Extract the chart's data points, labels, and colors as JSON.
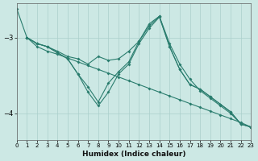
{
  "xlabel": "Humidex (Indice chaleur)",
  "bg_color": "#cce8e4",
  "line_color": "#2a7d6e",
  "grid_color": "#aacfcb",
  "xlim": [
    0,
    23
  ],
  "ylim": [
    -4.35,
    -2.55
  ],
  "yticks": [
    -4,
    -3
  ],
  "xticks": [
    0,
    1,
    2,
    3,
    4,
    5,
    6,
    7,
    8,
    9,
    10,
    11,
    12,
    13,
    14,
    15,
    16,
    17,
    18,
    19,
    20,
    21,
    22,
    23
  ],
  "series": [
    {
      "x": [
        0,
        1,
        2,
        3,
        4,
        5,
        6,
        7,
        8,
        9,
        10,
        11,
        12,
        13,
        14,
        15,
        16,
        17,
        18,
        19,
        20,
        21,
        22,
        23
      ],
      "y": [
        -2.62,
        -3.0,
        -3.12,
        -3.18,
        -3.22,
        -3.27,
        -3.32,
        -3.37,
        -3.42,
        -3.47,
        -3.52,
        -3.57,
        -3.62,
        -3.67,
        -3.72,
        -3.77,
        -3.82,
        -3.87,
        -3.92,
        -3.97,
        -4.02,
        -4.07,
        -4.12,
        -4.18
      ]
    },
    {
      "x": [
        1,
        2,
        3,
        4,
        5,
        6,
        7,
        8,
        9,
        10,
        11,
        12,
        13,
        14,
        15,
        16,
        17,
        18,
        19,
        20,
        21,
        22,
        23
      ],
      "y": [
        -3.0,
        -3.08,
        -3.12,
        -3.18,
        -3.25,
        -3.28,
        -3.35,
        -3.25,
        -3.3,
        -3.28,
        -3.18,
        -3.05,
        -2.82,
        -2.72,
        -3.08,
        -3.35,
        -3.55,
        -3.7,
        -3.8,
        -3.9,
        -4.0,
        -4.14,
        -4.18
      ]
    },
    {
      "x": [
        1,
        2,
        3,
        4,
        5,
        6,
        7,
        8,
        9,
        10,
        11,
        12,
        13,
        14,
        15,
        16,
        17,
        18,
        19,
        20,
        21,
        22,
        23
      ],
      "y": [
        -3.0,
        -3.08,
        -3.12,
        -3.2,
        -3.28,
        -3.48,
        -3.65,
        -3.85,
        -3.6,
        -3.45,
        -3.32,
        -3.05,
        -2.85,
        -2.72,
        -3.12,
        -3.42,
        -3.62,
        -3.68,
        -3.78,
        -3.88,
        -3.98,
        -4.14,
        -4.18
      ]
    },
    {
      "x": [
        1,
        2,
        3,
        4,
        5,
        6,
        7,
        8,
        9,
        10,
        11,
        12,
        13,
        14,
        15,
        16,
        17,
        18,
        19,
        20,
        21,
        22,
        23
      ],
      "y": [
        -3.0,
        -3.08,
        -3.12,
        -3.2,
        -3.28,
        -3.48,
        -3.72,
        -3.9,
        -3.72,
        -3.48,
        -3.35,
        -3.08,
        -2.88,
        -2.73,
        -3.12,
        -3.42,
        -3.62,
        -3.68,
        -3.78,
        -3.88,
        -3.98,
        -4.14,
        -4.18
      ]
    }
  ]
}
